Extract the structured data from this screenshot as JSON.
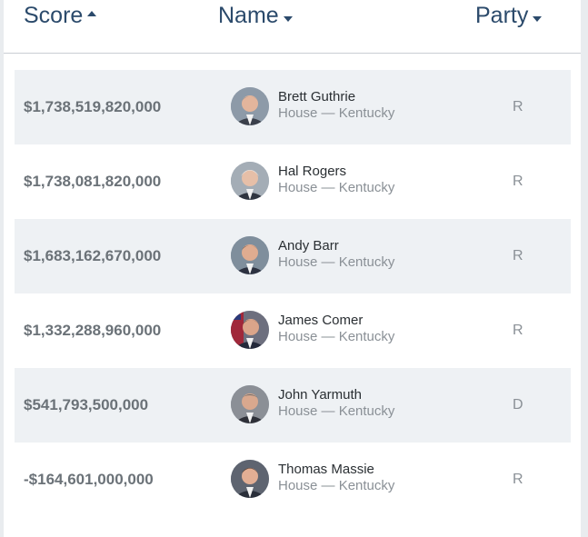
{
  "header": {
    "score_label": "Score",
    "name_label": "Name",
    "party_label": "Party",
    "score_sort": "caret-up-icon",
    "name_sort": "caret-down-icon",
    "party_sort": "caret-down-icon"
  },
  "rows": [
    {
      "score": "$1,738,519,820,000",
      "name": "Brett Guthrie",
      "district": "House — Kentucky",
      "party": "R"
    },
    {
      "score": "$1,738,081,820,000",
      "name": "Hal Rogers",
      "district": "House — Kentucky",
      "party": "R"
    },
    {
      "score": "$1,683,162,670,000",
      "name": "Andy Barr",
      "district": "House — Kentucky",
      "party": "R"
    },
    {
      "score": "$1,332,288,960,000",
      "name": "James Comer",
      "district": "House — Kentucky",
      "party": "R"
    },
    {
      "score": "$541,793,500,000",
      "name": "John Yarmuth",
      "district": "House — Kentucky",
      "party": "D"
    },
    {
      "score": "-$164,601,000,000",
      "name": "Thomas Massie",
      "district": "House — Kentucky",
      "party": "R"
    }
  ],
  "colors": {
    "header_text": "#2b4a6b",
    "row_shade": "#eef1f4",
    "score_text": "#6b7278",
    "muted_text": "#8a9096"
  }
}
